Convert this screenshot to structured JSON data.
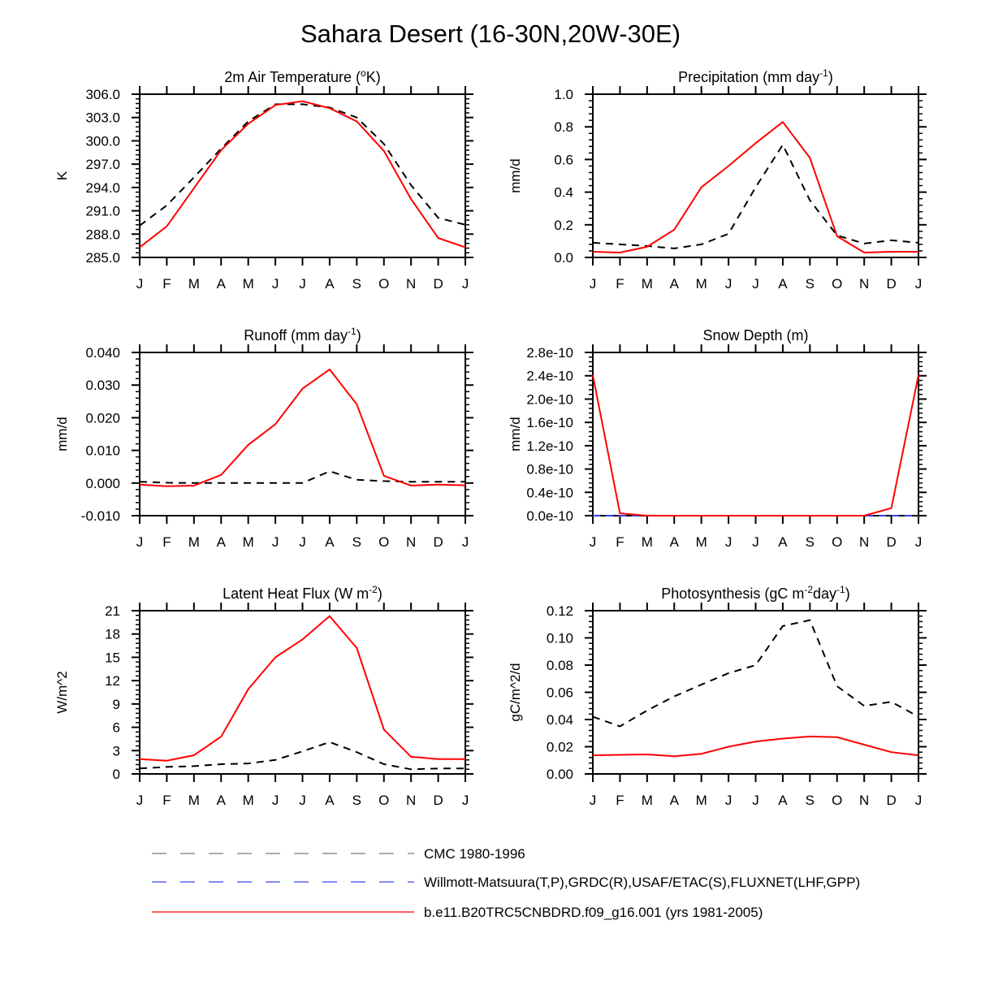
{
  "title": "Sahara Desert (16-30N,20W-30E)",
  "legend": [
    {
      "label": "CMC 1980-1996",
      "color": "#777777",
      "style": "dashed"
    },
    {
      "label": "Willmott-Matsuura(T,P),GRDC(R),USAF/ETAC(S),FLUXNET(LHF,GPP)",
      "color": "#3344ee",
      "style": "dashed"
    },
    {
      "label": "b.e11.B20TRC5CNBDRD.f09_g16.001 (yrs 1981-2005)",
      "color": "#ff0000",
      "style": "solid"
    }
  ],
  "chart_data": [
    {
      "type": "line",
      "title": [
        {
          "text": "2m Air Temperature ("
        },
        {
          "text": "o",
          "sup": true
        },
        {
          "text": "K)"
        }
      ],
      "ylabel": "K",
      "categories": [
        "J",
        "F",
        "M",
        "A",
        "M",
        "J",
        "J",
        "A",
        "S",
        "O",
        "N",
        "D",
        "J"
      ],
      "ylim": [
        285,
        306
      ],
      "yticks": [
        285,
        288,
        291,
        294,
        297,
        300,
        303,
        306
      ],
      "yticklabels": [
        "285.0",
        "288.0",
        "291.0",
        "294.0",
        "297.0",
        "300.0",
        "303.0",
        "306.0"
      ],
      "series": [
        {
          "name": "CMC 1980-1996",
          "color": "#000000",
          "dashed": true,
          "values": [
            289.1,
            291.7,
            295.3,
            299.0,
            302.5,
            304.7,
            304.7,
            304.3,
            303.0,
            299.6,
            294.3,
            290.1,
            289.2
          ]
        },
        {
          "name": "b.e11.B20TRC5CNBDRD.f09_g16.001 (yrs 1981-2005)",
          "color": "#ff0000",
          "dashed": false,
          "values": [
            286.3,
            289.0,
            293.9,
            298.8,
            302.2,
            304.6,
            305.1,
            304.2,
            302.5,
            298.7,
            292.5,
            287.5,
            286.3
          ]
        }
      ]
    },
    {
      "type": "line",
      "title": [
        {
          "text": "Precipitation (mm day"
        },
        {
          "text": "-1",
          "sup": true
        },
        {
          "text": ")"
        }
      ],
      "ylabel": "mm/d",
      "categories": [
        "J",
        "F",
        "M",
        "A",
        "M",
        "J",
        "J",
        "A",
        "S",
        "O",
        "N",
        "D",
        "J"
      ],
      "ylim": [
        0,
        1.0
      ],
      "yticks": [
        0,
        0.2,
        0.4,
        0.6,
        0.8,
        1.0
      ],
      "yticklabels": [
        "0.0",
        "0.2",
        "0.4",
        "0.6",
        "0.8",
        "1.0"
      ],
      "series": [
        {
          "name": "CMC 1980-1996",
          "color": "#000000",
          "dashed": true,
          "values": [
            0.09,
            0.08,
            0.07,
            0.055,
            0.08,
            0.145,
            0.43,
            0.69,
            0.35,
            0.135,
            0.085,
            0.105,
            0.09
          ]
        },
        {
          "name": "b.e11.B20TRC5CNBDRD.f09_g16.001 (yrs 1981-2005)",
          "color": "#ff0000",
          "dashed": false,
          "values": [
            0.035,
            0.03,
            0.065,
            0.17,
            0.43,
            0.56,
            0.7,
            0.83,
            0.61,
            0.13,
            0.03,
            0.035,
            0.035
          ]
        }
      ]
    },
    {
      "type": "line",
      "title": [
        {
          "text": "Runoff (mm day"
        },
        {
          "text": "-1",
          "sup": true
        },
        {
          "text": ")"
        }
      ],
      "ylabel": "mm/d",
      "categories": [
        "J",
        "F",
        "M",
        "A",
        "M",
        "J",
        "J",
        "A",
        "S",
        "O",
        "N",
        "D",
        "J"
      ],
      "ylim": [
        -0.01,
        0.04
      ],
      "yticks": [
        -0.01,
        0,
        0.01,
        0.02,
        0.03,
        0.04
      ],
      "yticklabels": [
        "-0.010",
        "0.000",
        "0.010",
        "0.020",
        "0.030",
        "0.040"
      ],
      "series": [
        {
          "name": "CMC 1980-1996",
          "color": "#000000",
          "dashed": true,
          "values": [
            0.0004,
            0.0001,
            0.0,
            0.0,
            0.0,
            0.0,
            0.0,
            0.0036,
            0.001,
            0.0006,
            0.0004,
            0.0004,
            0.0004
          ]
        },
        {
          "name": "b.e11.B20TRC5CNBDRD.f09_g16.001 (yrs 1981-2005)",
          "color": "#ff0000",
          "dashed": false,
          "values": [
            -0.0005,
            -0.001,
            -0.0008,
            0.0025,
            0.0117,
            0.018,
            0.0289,
            0.0348,
            0.0241,
            0.0022,
            -0.0008,
            -0.0005,
            -0.0007
          ]
        }
      ]
    },
    {
      "type": "line",
      "title": [
        {
          "text": "Snow Depth (m)"
        }
      ],
      "ylabel": "mm/d",
      "categories": [
        "J",
        "F",
        "M",
        "A",
        "M",
        "J",
        "J",
        "A",
        "S",
        "O",
        "N",
        "D",
        "J"
      ],
      "ylim": [
        0,
        2.8e-10
      ],
      "yticks": [
        0,
        4e-11,
        8e-11,
        1.2e-10,
        1.6e-10,
        2e-10,
        2.4e-10,
        2.8e-10
      ],
      "yticklabels": [
        "0.0e-10",
        "0.4e-10",
        "0.8e-10",
        "1.2e-10",
        "1.6e-10",
        "2.0e-10",
        "2.4e-10",
        "2.8e-10"
      ],
      "series": [
        {
          "name": "Willmott-Matsuura(T,P),GRDC(R),USAF/ETAC(S),FLUXNET(LHF,GPP)",
          "color": "#3344ee",
          "dashed": true,
          "values": [
            0,
            0,
            0,
            0,
            0,
            0,
            0,
            0,
            0,
            0,
            0,
            0,
            0
          ]
        },
        {
          "name": "b.e11.B20TRC5CNBDRD.f09_g16.001 (yrs 1981-2005)",
          "color": "#ff0000",
          "dashed": false,
          "values": [
            2.41e-10,
            4e-12,
            0,
            0,
            0,
            0,
            0,
            0,
            0,
            0,
            0,
            1.3e-11,
            2.41e-10
          ]
        }
      ]
    },
    {
      "type": "line",
      "title": [
        {
          "text": "Latent Heat Flux (W m"
        },
        {
          "text": "-2",
          "sup": true
        },
        {
          "text": ")"
        }
      ],
      "ylabel": "W/m^2",
      "categories": [
        "J",
        "F",
        "M",
        "A",
        "M",
        "J",
        "J",
        "A",
        "S",
        "O",
        "N",
        "D",
        "J"
      ],
      "ylim": [
        0,
        21
      ],
      "yticks": [
        0,
        3,
        6,
        9,
        12,
        15,
        18,
        21
      ],
      "yticklabels": [
        "0",
        "3",
        "6",
        "9",
        "12",
        "15",
        "18",
        "21"
      ],
      "series": [
        {
          "name": "CMC 1980-1996",
          "color": "#000000",
          "dashed": true,
          "values": [
            0.7,
            0.9,
            1.0,
            1.25,
            1.35,
            1.8,
            2.9,
            4.1,
            2.8,
            1.25,
            0.6,
            0.7,
            0.7
          ]
        },
        {
          "name": "b.e11.B20TRC5CNBDRD.f09_g16.001 (yrs 1981-2005)",
          "color": "#ff0000",
          "dashed": false,
          "values": [
            1.9,
            1.7,
            2.4,
            4.8,
            10.9,
            15.0,
            17.3,
            20.3,
            16.2,
            5.7,
            2.2,
            1.9,
            1.9
          ]
        }
      ]
    },
    {
      "type": "line",
      "title": [
        {
          "text": "Photosynthesis (gC m"
        },
        {
          "text": "-2",
          "sup": true
        },
        {
          "text": "day"
        },
        {
          "text": "-1",
          "sup": true
        },
        {
          "text": ")"
        }
      ],
      "ylabel": "gC/m^2/d",
      "categories": [
        "J",
        "F",
        "M",
        "A",
        "M",
        "J",
        "J",
        "A",
        "S",
        "O",
        "N",
        "D",
        "J"
      ],
      "ylim": [
        0,
        0.12
      ],
      "yticks": [
        0,
        0.02,
        0.04,
        0.06,
        0.08,
        0.1,
        0.12
      ],
      "yticklabels": [
        "0.00",
        "0.02",
        "0.04",
        "0.06",
        "0.08",
        "0.10",
        "0.12"
      ],
      "series": [
        {
          "name": "CMC 1980-1996",
          "color": "#000000",
          "dashed": true,
          "values": [
            0.042,
            0.035,
            0.0466,
            0.057,
            0.0657,
            0.074,
            0.08,
            0.1087,
            0.113,
            0.0645,
            0.05,
            0.053,
            0.042
          ]
        },
        {
          "name": "b.e11.B20TRC5CNBDRD.f09_g16.001 (yrs 1981-2005)",
          "color": "#ff0000",
          "dashed": false,
          "values": [
            0.0137,
            0.014,
            0.0143,
            0.013,
            0.0148,
            0.02,
            0.0238,
            0.026,
            0.0275,
            0.027,
            0.0215,
            0.016,
            0.0137
          ]
        }
      ]
    }
  ]
}
